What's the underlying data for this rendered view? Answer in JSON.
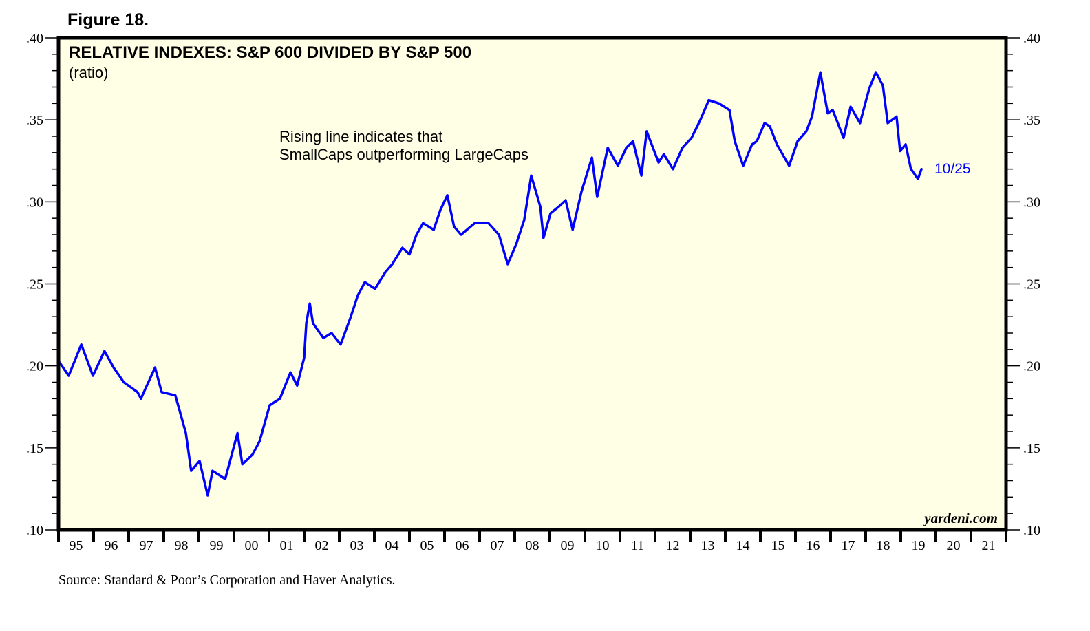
{
  "figure_label": "Figure 18.",
  "source": "Source: Standard & Poor’s Corporation and Haver Analytics.",
  "watermark": "yardeni.com",
  "colors": {
    "line": "#0000ff",
    "plot_background": "#ffffe6",
    "frame": "#000000"
  },
  "chart_data": {
    "type": "line",
    "title": "RELATIVE INDEXES: S&P 600 DIVIDED BY S&P 500",
    "subtitle": "(ratio)",
    "annotation": [
      "Rising line indicates that",
      "SmallCaps outperforming LargeCaps"
    ],
    "end_label": "10/25",
    "xlabel": "",
    "ylabel": "",
    "xlim": [
      1995,
      2022
    ],
    "ylim": [
      0.1,
      0.4
    ],
    "y_ticks": [
      0.1,
      0.15,
      0.2,
      0.25,
      0.3,
      0.35,
      0.4
    ],
    "y_tick_labels": [
      ".10",
      ".15",
      ".20",
      ".25",
      ".30",
      ".35",
      ".40"
    ],
    "y_minor_step": 0.01,
    "x_tick_labels": [
      "95",
      "96",
      "97",
      "98",
      "99",
      "00",
      "01",
      "02",
      "03",
      "04",
      "05",
      "06",
      "07",
      "08",
      "09",
      "10",
      "11",
      "12",
      "13",
      "14",
      "15",
      "16",
      "17",
      "18",
      "19",
      "20",
      "21"
    ],
    "grid": false,
    "series": [
      {
        "name": "S&P 600 / S&P 500",
        "x": [
          1995.0,
          1995.29,
          1995.65,
          1995.98,
          1996.31,
          1996.57,
          1996.86,
          1997.25,
          1997.35,
          1997.75,
          1997.94,
          1998.33,
          1998.63,
          1998.78,
          1999.02,
          1999.25,
          1999.39,
          1999.75,
          2000.1,
          2000.24,
          2000.53,
          2000.73,
          2001.02,
          2001.31,
          2001.61,
          2001.8,
          2002.0,
          2002.06,
          2002.16,
          2002.25,
          2002.55,
          2002.78,
          2003.04,
          2003.33,
          2003.53,
          2003.73,
          2004.02,
          2004.31,
          2004.51,
          2004.8,
          2005.0,
          2005.2,
          2005.39,
          2005.69,
          2005.88,
          2006.08,
          2006.27,
          2006.47,
          2006.86,
          2007.25,
          2007.55,
          2007.8,
          2008.04,
          2008.27,
          2008.47,
          2008.73,
          2008.82,
          2009.02,
          2009.25,
          2009.45,
          2009.65,
          2009.9,
          2010.2,
          2010.35,
          2010.65,
          2010.94,
          2011.18,
          2011.37,
          2011.61,
          2011.76,
          2012.1,
          2012.25,
          2012.51,
          2012.78,
          2013.04,
          2013.29,
          2013.53,
          2013.82,
          2014.12,
          2014.27,
          2014.51,
          2014.76,
          2014.9,
          2015.12,
          2015.27,
          2015.47,
          2015.82,
          2016.06,
          2016.31,
          2016.47,
          2016.71,
          2016.92,
          2017.06,
          2017.37,
          2017.57,
          2017.84,
          2018.1,
          2018.29,
          2018.49,
          2018.63,
          2018.88,
          2018.98,
          2019.14,
          2019.29,
          2019.49,
          2019.59
        ],
        "values": [
          0.203,
          0.194,
          0.213,
          0.194,
          0.209,
          0.199,
          0.19,
          0.184,
          0.18,
          0.199,
          0.184,
          0.182,
          0.159,
          0.136,
          0.142,
          0.121,
          0.136,
          0.131,
          0.159,
          0.14,
          0.146,
          0.154,
          0.176,
          0.18,
          0.196,
          0.188,
          0.205,
          0.226,
          0.238,
          0.226,
          0.217,
          0.22,
          0.213,
          0.23,
          0.243,
          0.251,
          0.247,
          0.257,
          0.262,
          0.272,
          0.268,
          0.28,
          0.287,
          0.283,
          0.295,
          0.304,
          0.285,
          0.28,
          0.287,
          0.287,
          0.28,
          0.262,
          0.274,
          0.289,
          0.316,
          0.297,
          0.278,
          0.293,
          0.297,
          0.301,
          0.283,
          0.306,
          0.327,
          0.303,
          0.333,
          0.322,
          0.333,
          0.337,
          0.316,
          0.343,
          0.324,
          0.329,
          0.32,
          0.333,
          0.339,
          0.35,
          0.362,
          0.36,
          0.356,
          0.337,
          0.322,
          0.335,
          0.337,
          0.348,
          0.346,
          0.335,
          0.322,
          0.337,
          0.343,
          0.352,
          0.379,
          0.354,
          0.356,
          0.339,
          0.358,
          0.348,
          0.369,
          0.379,
          0.371,
          0.348,
          0.352,
          0.331,
          0.335,
          0.32,
          0.314,
          0.32
        ]
      }
    ]
  }
}
